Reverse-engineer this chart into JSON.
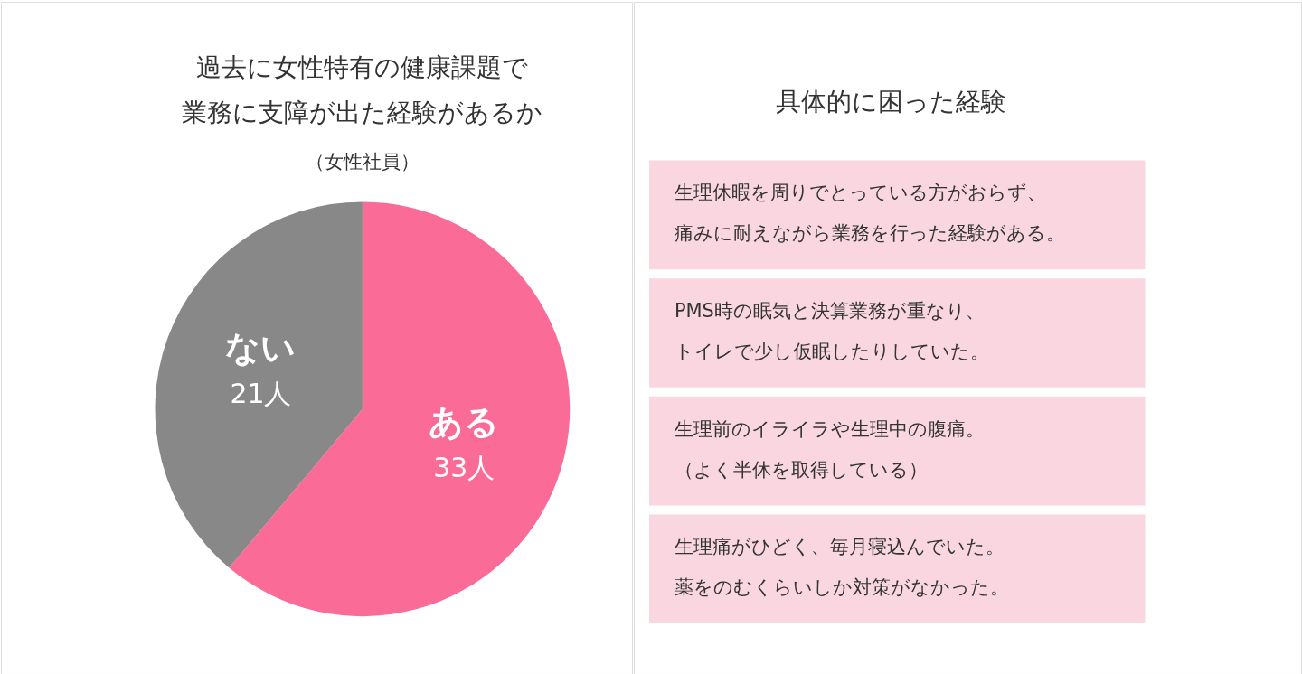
{
  "chart_data": [
    {
      "type": "pie",
      "title": "過去に女性特有の健康課題で業務に支障が出た経験があるか",
      "subtitle": "（女性社員）",
      "categories": [
        "ある",
        "ない"
      ],
      "values": [
        33,
        21
      ],
      "colors": [
        "#fa6b98",
        "#888888"
      ],
      "value_labels": [
        "33人",
        "21人"
      ]
    },
    {
      "type": "other",
      "title": "具体的に困った経験",
      "annotations": [
        "生理休暇を周りでとっている方がおらず、痛みに耐えながら業務を行った経験がある。",
        "PMS時の眠気と決算業務が重なり、トイレで少し仮眠したりしていた。",
        "生理前のイライラや生理中の腹痛。（よく半休を取得している）",
        "生理痛がひどく、毎月寝込んでいた。薬をのむくらいしか対策がなかった。"
      ]
    }
  ]
}
